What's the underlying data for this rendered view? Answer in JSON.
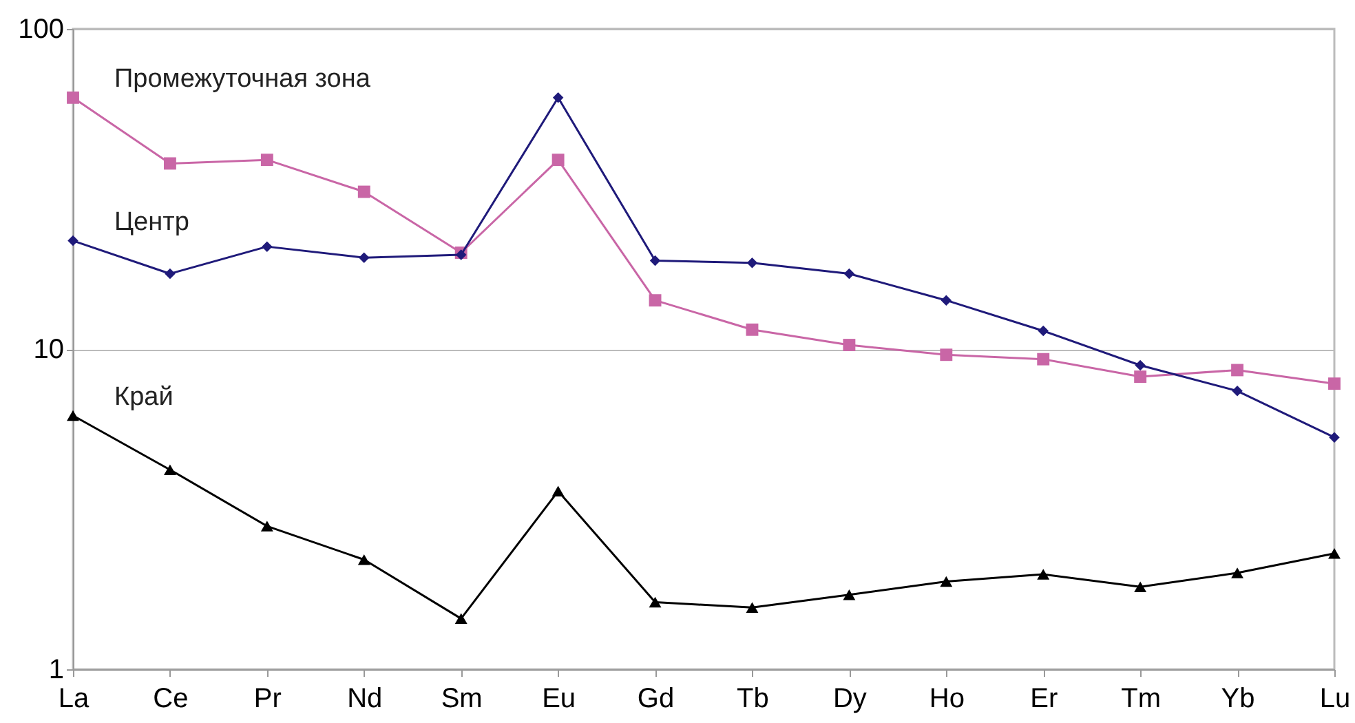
{
  "chart_data": {
    "type": "line",
    "categories": [
      "La",
      "Ce",
      "Pr",
      "Nd",
      "Sm",
      "Eu",
      "Gd",
      "Tb",
      "Dy",
      "Ho",
      "Er",
      "Tm",
      "Yb",
      "Lu"
    ],
    "series": [
      {
        "name": "Промежуточная зона",
        "color": "#c966a6",
        "marker": "square",
        "values": [
          61,
          38,
          39,
          31,
          20,
          39,
          14.2,
          11.5,
          10.3,
          9.6,
          9.3,
          8.2,
          8.6,
          7.8
        ]
      },
      {
        "name": "Центр",
        "color": "#1f1a7a",
        "marker": "diamond",
        "values": [
          21.8,
          17.2,
          20.9,
          19.3,
          19.7,
          61,
          18.9,
          18.6,
          17.2,
          14.2,
          11.4,
          8.9,
          7.4,
          5.3
        ]
      },
      {
        "name": "Край",
        "color": "#000000",
        "marker": "triangle",
        "values": [
          6.2,
          4.2,
          2.8,
          2.2,
          1.44,
          3.6,
          1.62,
          1.56,
          1.71,
          1.88,
          1.98,
          1.81,
          2.0,
          2.3
        ]
      }
    ],
    "log": true,
    "ylim": [
      1,
      100
    ],
    "yticks": [
      1,
      10,
      100
    ],
    "grid": "y",
    "line_style": "solid"
  }
}
